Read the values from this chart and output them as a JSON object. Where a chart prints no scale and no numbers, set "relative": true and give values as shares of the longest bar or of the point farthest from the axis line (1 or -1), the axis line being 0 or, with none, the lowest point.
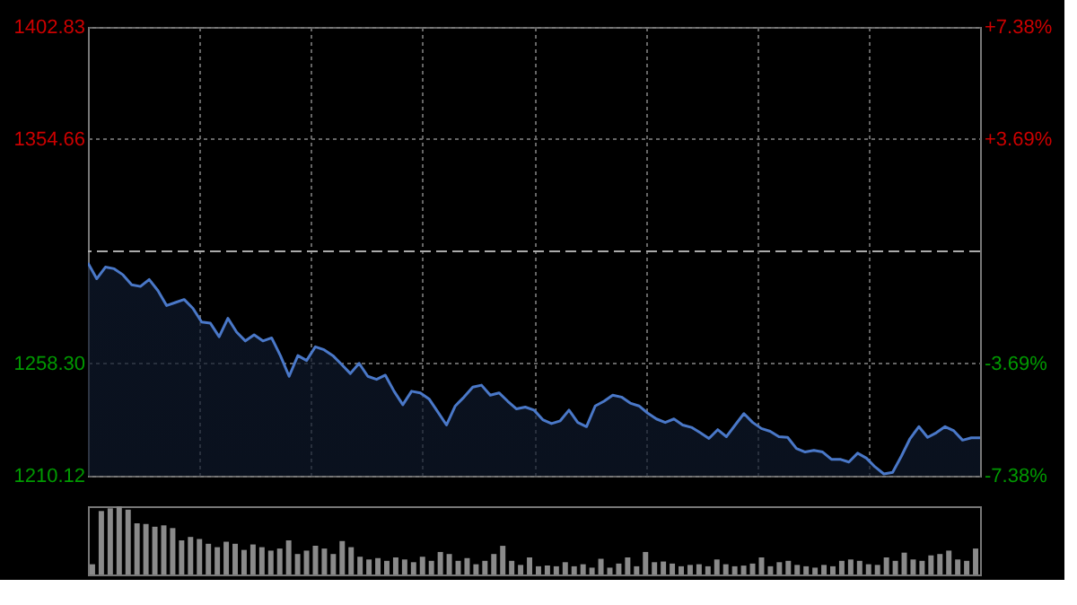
{
  "chart_data": [
    {
      "type": "area",
      "categories": [
        null,
        null,
        null,
        null,
        null,
        null,
        null,
        null,
        null,
        null,
        null,
        null,
        null,
        null,
        null,
        null,
        null,
        null,
        null,
        null,
        null,
        null,
        null,
        null,
        null,
        null,
        null,
        null,
        null,
        null,
        null,
        null,
        null,
        null,
        null,
        null,
        null,
        null,
        null,
        null,
        null,
        null,
        null,
        null,
        null,
        null,
        null,
        null,
        null,
        null,
        null,
        null,
        null,
        null,
        null,
        null,
        null,
        null,
        null,
        null,
        null,
        null,
        null,
        null,
        null,
        null,
        null,
        null,
        null,
        null,
        null,
        null,
        null,
        null,
        null,
        null,
        null,
        null,
        null,
        null,
        null,
        null,
        null,
        null,
        null,
        null,
        null,
        null,
        null,
        null,
        null,
        null,
        null,
        null,
        null,
        null,
        null,
        null,
        null,
        null,
        null,
        null,
        null
      ],
      "series": [
        {
          "color": "#4a78c8",
          "values": [
            1301.5,
            1294.7,
            1299.7,
            1299.0,
            1296.4,
            1292.1,
            1291.4,
            1294.4,
            1289.6,
            1283.2,
            1284.5,
            1285.8,
            1282.0,
            1276.1,
            1275.6,
            1269.8,
            1277.7,
            1271.8,
            1268.0,
            1270.6,
            1268.0,
            1269.3,
            1261.7,
            1252.8,
            1261.7,
            1259.6,
            1265.5,
            1264.2,
            1261.7,
            1257.9,
            1254.0,
            1258.4,
            1252.8,
            1251.5,
            1253.3,
            1246.4,
            1240.6,
            1246.4,
            1245.7,
            1243.1,
            1237.5,
            1231.9,
            1240.1,
            1243.9,
            1248.2,
            1249.0,
            1244.7,
            1245.7,
            1242.1,
            1238.8,
            1239.6,
            1238.3,
            1234.2,
            1232.5,
            1233.7,
            1238.3,
            1233.0,
            1231.2,
            1240.1,
            1242.1,
            1244.7,
            1243.9,
            1241.3,
            1240.1,
            1237.0,
            1234.5,
            1233.0,
            1234.5,
            1231.9,
            1230.9,
            1228.6,
            1226.1,
            1229.9,
            1226.9,
            1231.9,
            1236.8,
            1233.0,
            1230.4,
            1229.2,
            1226.9,
            1226.6,
            1221.8,
            1220.3,
            1221.0,
            1220.3,
            1217.2,
            1217.2,
            1216.0,
            1219.8,
            1217.7,
            1213.9,
            1210.9,
            1211.6,
            1218.5,
            1226.1,
            1231.2,
            1226.6,
            1228.6,
            1231.2,
            1229.4,
            1225.4,
            1226.4,
            1226.4
          ]
        }
      ],
      "ylim": [
        1210.12,
        1402.83
      ],
      "yticks": [
        1210.12,
        {
          "value": 1258.3,
          "label": "1258.30"
        },
        1354.66,
        1402.83
      ],
      "y2lim": [
        -7.38,
        7.38
      ],
      "y2ticks": [
        {
          "value": -7.38,
          "label": "-7.38%"
        },
        {
          "value": -3.69,
          "label": "-3.69%"
        },
        {
          "value": 3.69,
          "label": "+3.69%"
        },
        {
          "value": 7.38,
          "label": "+7.38%"
        }
      ],
      "ref_lines": [
        {
          "axis": "y",
          "value": 1306.48,
          "color": "#aaaaaa",
          "line_style": "dashed"
        }
      ],
      "grid": true,
      "tick_labels": "y"
    },
    {
      "type": "bar",
      "relative": true,
      "categories": [
        null,
        null,
        null,
        null,
        null,
        null,
        null,
        null,
        null,
        null,
        null,
        null,
        null,
        null,
        null,
        null,
        null,
        null,
        null,
        null,
        null,
        null,
        null,
        null,
        null,
        null,
        null,
        null,
        null,
        null,
        null,
        null,
        null,
        null,
        null,
        null,
        null,
        null,
        null,
        null,
        null,
        null,
        null,
        null,
        null,
        null,
        null,
        null,
        null,
        null,
        null,
        null,
        null,
        null,
        null,
        null,
        null,
        null,
        null,
        null,
        null,
        null,
        null,
        null,
        null,
        null,
        null,
        null,
        null,
        null,
        null,
        null,
        null,
        null,
        null,
        null,
        null,
        null,
        null,
        null,
        null,
        null,
        null,
        null,
        null,
        null,
        null,
        null,
        null,
        null,
        null,
        null,
        null,
        null,
        null,
        null,
        null,
        null,
        null,
        null
      ],
      "values": [
        0.15,
        0.93,
        0.97,
        1.0,
        0.95,
        0.75,
        0.74,
        0.7,
        0.72,
        0.68,
        0.5,
        0.55,
        0.52,
        0.45,
        0.4,
        0.48,
        0.45,
        0.36,
        0.44,
        0.4,
        0.35,
        0.38,
        0.5,
        0.3,
        0.35,
        0.42,
        0.38,
        0.3,
        0.49,
        0.4,
        0.26,
        0.22,
        0.24,
        0.2,
        0.25,
        0.22,
        0.18,
        0.26,
        0.2,
        0.33,
        0.3,
        0.2,
        0.24,
        0.15,
        0.2,
        0.3,
        0.42,
        0.2,
        0.14,
        0.25,
        0.12,
        0.13,
        0.12,
        0.18,
        0.12,
        0.15,
        0.1,
        0.23,
        0.1,
        0.16,
        0.25,
        0.12,
        0.33,
        0.18,
        0.19,
        0.16,
        0.12,
        0.14,
        0.15,
        0.12,
        0.22,
        0.15,
        0.12,
        0.13,
        0.16,
        0.25,
        0.12,
        0.18,
        0.2,
        0.14,
        0.12,
        0.1,
        0.14,
        0.12,
        0.2,
        0.22,
        0.2,
        0.15,
        0.14,
        0.25,
        0.2,
        0.32,
        0.22,
        0.2,
        0.28,
        0.3,
        0.35,
        0.22,
        0.2,
        0.38
      ],
      "color": "#8a8a8a"
    }
  ]
}
